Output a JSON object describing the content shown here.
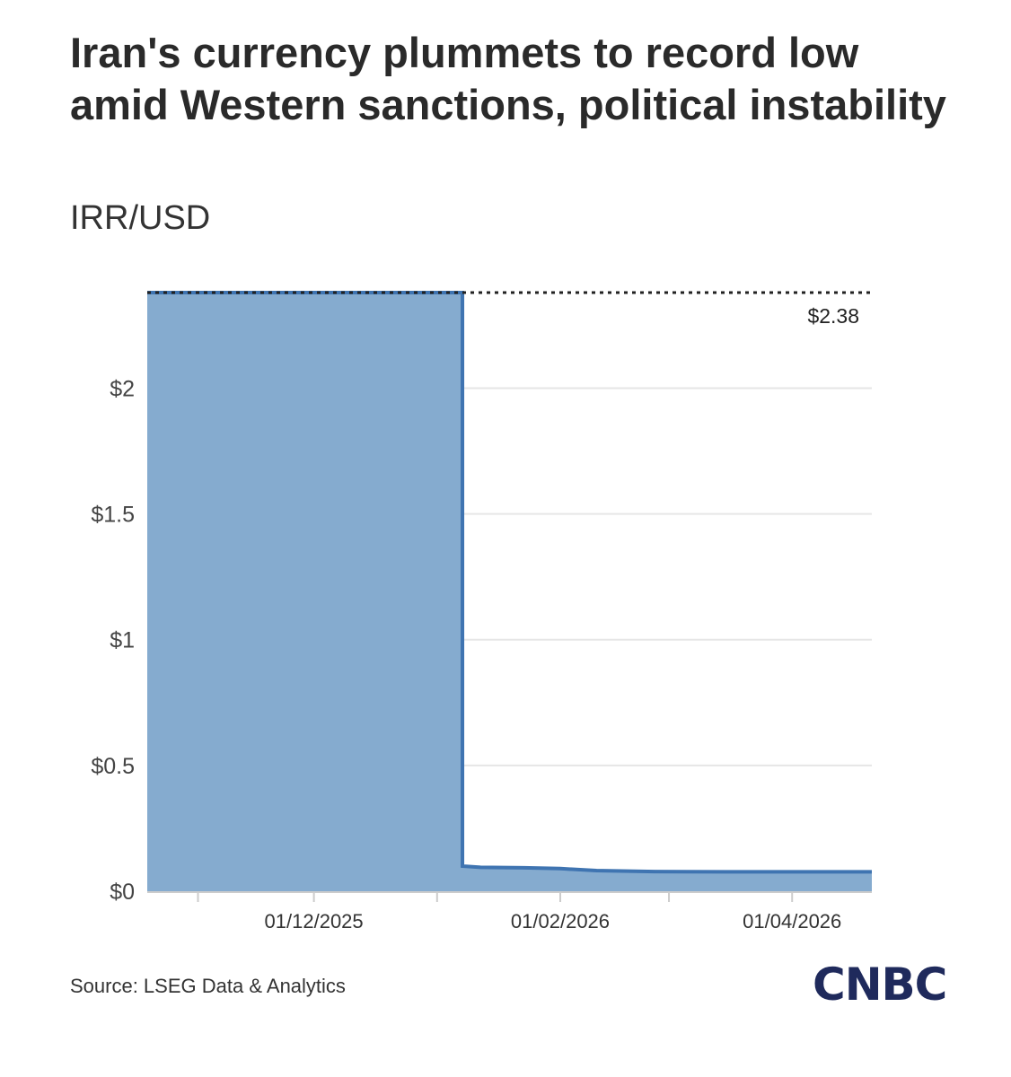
{
  "header": {
    "title": "Iran's currency plummets to record low amid Western sanctions, political instability",
    "subtitle": "IRR/USD"
  },
  "footer": {
    "source": "Source: LSEG Data & Analytics",
    "logo": "CNBC"
  },
  "colors": {
    "fill": "#85abcf",
    "line": "#3f74b1",
    "grid": "#e6e6e6",
    "ref_line": "#222222"
  },
  "chart_data": {
    "type": "area",
    "title": "Iran's currency plummets to record low amid Western sanctions, political instability",
    "ylabel": "IRR/USD",
    "xlabel": "",
    "ylim": [
      0,
      2.38
    ],
    "grid": true,
    "y_ticks": [
      {
        "value": 0,
        "label": "$0"
      },
      {
        "value": 0.5,
        "label": "$0.5"
      },
      {
        "value": 1,
        "label": "$1"
      },
      {
        "value": 1.5,
        "label": "$1.5"
      },
      {
        "value": 2,
        "label": "$2"
      }
    ],
    "x_range": [
      0,
      100
    ],
    "x_minor_ticks": [
      7,
      40,
      72
    ],
    "x_ticks": [
      {
        "x": 23,
        "label": "01/12/2025"
      },
      {
        "x": 57,
        "label": "01/02/2026"
      },
      {
        "x": 89,
        "label": "01/04/2026"
      }
    ],
    "series": [
      {
        "name": "IRR/USD",
        "points": [
          [
            0,
            2.38
          ],
          [
            43.5,
            2.38
          ],
          [
            43.5,
            0.1
          ],
          [
            46,
            0.095
          ],
          [
            52,
            0.093
          ],
          [
            57,
            0.09
          ],
          [
            62,
            0.082
          ],
          [
            70,
            0.078
          ],
          [
            80,
            0.077
          ],
          [
            90,
            0.077
          ],
          [
            100,
            0.077
          ]
        ]
      }
    ],
    "annotations": [
      {
        "type": "reference_line",
        "value": 2.38,
        "label": "$2.38"
      }
    ]
  }
}
